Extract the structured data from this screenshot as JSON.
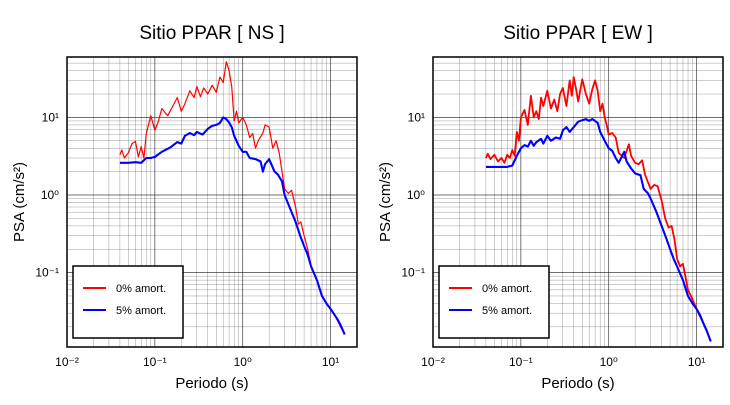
{
  "colors": {
    "undamped": "#ff0000",
    "damped": "#0000ff",
    "grid": "#000000",
    "background": "#ffffff"
  },
  "chart_data": [
    {
      "type": "line",
      "title": "Sitio PPAR [ NS ]",
      "xlabel": "Periodo (s)",
      "ylabel": "PSA (cm/s²)",
      "xscale": "log",
      "yscale": "log",
      "xlim": [
        0.01,
        20
      ],
      "ylim": [
        0.011,
        60
      ],
      "x_ticks": [
        "10⁻²",
        "10⁻¹",
        "10⁰",
        "10¹"
      ],
      "y_ticks": [
        "10⁻¹",
        "10⁰",
        "10¹"
      ],
      "grid": true,
      "legend_position": "bottom-left",
      "series": [
        {
          "name": "0% amort.",
          "color": "#ff0000",
          "points": [
            [
              0.04,
              3.3
            ],
            [
              0.042,
              3.8
            ],
            [
              0.045,
              3.0
            ],
            [
              0.05,
              3.5
            ],
            [
              0.055,
              4.6
            ],
            [
              0.06,
              4.9
            ],
            [
              0.065,
              3.1
            ],
            [
              0.07,
              4.2
            ],
            [
              0.075,
              3.0
            ],
            [
              0.08,
              6.2
            ],
            [
              0.09,
              10.5
            ],
            [
              0.1,
              6.8
            ],
            [
              0.11,
              9.0
            ],
            [
              0.12,
              13.0
            ],
            [
              0.14,
              10.5
            ],
            [
              0.16,
              14.0
            ],
            [
              0.18,
              18.0
            ],
            [
              0.2,
              12.0
            ],
            [
              0.22,
              15.0
            ],
            [
              0.25,
              22.0
            ],
            [
              0.28,
              18.0
            ],
            [
              0.3,
              25.0
            ],
            [
              0.33,
              18.5
            ],
            [
              0.36,
              24.0
            ],
            [
              0.4,
              20.0
            ],
            [
              0.45,
              26.0
            ],
            [
              0.5,
              21.0
            ],
            [
              0.55,
              33.0
            ],
            [
              0.6,
              28.0
            ],
            [
              0.65,
              52.0
            ],
            [
              0.7,
              40.0
            ],
            [
              0.75,
              25.0
            ],
            [
              0.8,
              9.0
            ],
            [
              0.85,
              12.0
            ],
            [
              0.9,
              8.5
            ],
            [
              1.0,
              10.0
            ],
            [
              1.1,
              8.0
            ],
            [
              1.2,
              5.5
            ],
            [
              1.3,
              6.2
            ],
            [
              1.4,
              4.0
            ],
            [
              1.5,
              5.0
            ],
            [
              1.7,
              6.3
            ],
            [
              1.8,
              8.0
            ],
            [
              2.0,
              7.5
            ],
            [
              2.2,
              4.0
            ],
            [
              2.4,
              5.0
            ],
            [
              2.6,
              3.5
            ],
            [
              2.8,
              2.0
            ],
            [
              3.0,
              1.2
            ],
            [
              3.3,
              1.05
            ],
            [
              3.6,
              1.15
            ],
            [
              4.0,
              0.7
            ],
            [
              4.3,
              0.42
            ],
            [
              4.6,
              0.45
            ],
            [
              5.0,
              0.3
            ],
            [
              5.5,
              0.2
            ],
            [
              6.0,
              0.12
            ],
            [
              7.0,
              0.08
            ],
            [
              8.0,
              0.05
            ],
            [
              9.0,
              0.04
            ],
            [
              10.0,
              0.034
            ],
            [
              11.0,
              0.029
            ],
            [
              12.0,
              0.024
            ],
            [
              13.0,
              0.02
            ],
            [
              14.5,
              0.016
            ]
          ]
        },
        {
          "name": "5% amort.",
          "color": "#0000ff",
          "points": [
            [
              0.04,
              2.6
            ],
            [
              0.05,
              2.6
            ],
            [
              0.06,
              2.65
            ],
            [
              0.07,
              2.6
            ],
            [
              0.08,
              3.0
            ],
            [
              0.09,
              3.0
            ],
            [
              0.1,
              3.1
            ],
            [
              0.12,
              3.6
            ],
            [
              0.15,
              4.1
            ],
            [
              0.18,
              4.8
            ],
            [
              0.2,
              4.6
            ],
            [
              0.22,
              5.8
            ],
            [
              0.25,
              6.3
            ],
            [
              0.28,
              5.9
            ],
            [
              0.3,
              6.5
            ],
            [
              0.35,
              6.0
            ],
            [
              0.4,
              7.1
            ],
            [
              0.45,
              7.8
            ],
            [
              0.5,
              8.0
            ],
            [
              0.55,
              8.5
            ],
            [
              0.6,
              10.0
            ],
            [
              0.65,
              9.5
            ],
            [
              0.7,
              8.6
            ],
            [
              0.75,
              7.5
            ],
            [
              0.8,
              5.8
            ],
            [
              0.9,
              4.3
            ],
            [
              1.0,
              3.6
            ],
            [
              1.1,
              3.6
            ],
            [
              1.2,
              3.0
            ],
            [
              1.4,
              2.9
            ],
            [
              1.6,
              2.7
            ],
            [
              1.7,
              2.0
            ],
            [
              1.8,
              2.5
            ],
            [
              2.0,
              2.9
            ],
            [
              2.3,
              2.0
            ],
            [
              2.5,
              1.85
            ],
            [
              2.8,
              1.5
            ],
            [
              3.0,
              1.0
            ],
            [
              3.5,
              0.65
            ],
            [
              4.0,
              0.45
            ],
            [
              4.5,
              0.3
            ],
            [
              5.0,
              0.22
            ],
            [
              5.5,
              0.17
            ],
            [
              6.0,
              0.12
            ],
            [
              7.0,
              0.08
            ],
            [
              8.0,
              0.05
            ],
            [
              9.0,
              0.04
            ],
            [
              10.0,
              0.034
            ],
            [
              11.0,
              0.029
            ],
            [
              12.0,
              0.025
            ],
            [
              13.0,
              0.021
            ],
            [
              14.5,
              0.016
            ]
          ]
        }
      ]
    },
    {
      "type": "line",
      "title": "Sitio PPAR [ EW ]",
      "xlabel": "Periodo (s)",
      "ylabel": "PSA (cm/s²)",
      "xscale": "log",
      "yscale": "log",
      "xlim": [
        0.01,
        20
      ],
      "ylim": [
        0.011,
        60
      ],
      "x_ticks": [
        "10⁻²",
        "10⁻¹",
        "10⁰",
        "10¹"
      ],
      "y_ticks": [
        "10⁻¹",
        "10⁰",
        "10¹"
      ],
      "grid": true,
      "legend_position": "bottom-left",
      "series": [
        {
          "name": "0% amort.",
          "color": "#ff0000",
          "points": [
            [
              0.04,
              3.0
            ],
            [
              0.042,
              3.4
            ],
            [
              0.045,
              2.9
            ],
            [
              0.05,
              3.3
            ],
            [
              0.055,
              2.7
            ],
            [
              0.06,
              3.0
            ],
            [
              0.065,
              2.6
            ],
            [
              0.07,
              3.3
            ],
            [
              0.075,
              3.0
            ],
            [
              0.08,
              3.8
            ],
            [
              0.085,
              3.2
            ],
            [
              0.09,
              6.5
            ],
            [
              0.095,
              5.0
            ],
            [
              0.1,
              10.0
            ],
            [
              0.11,
              12.5
            ],
            [
              0.12,
              8.0
            ],
            [
              0.13,
              19.0
            ],
            [
              0.14,
              10.0
            ],
            [
              0.15,
              12.0
            ],
            [
              0.16,
              9.5
            ],
            [
              0.17,
              18.0
            ],
            [
              0.18,
              14.0
            ],
            [
              0.2,
              22.0
            ],
            [
              0.22,
              13.0
            ],
            [
              0.24,
              17.0
            ],
            [
              0.26,
              12.0
            ],
            [
              0.28,
              20.0
            ],
            [
              0.3,
              24.0
            ],
            [
              0.33,
              14.0
            ],
            [
              0.36,
              30.0
            ],
            [
              0.38,
              19.0
            ],
            [
              0.4,
              33.0
            ],
            [
              0.42,
              25.0
            ],
            [
              0.45,
              16.0
            ],
            [
              0.5,
              31.0
            ],
            [
              0.55,
              20.0
            ],
            [
              0.6,
              15.0
            ],
            [
              0.65,
              23.0
            ],
            [
              0.7,
              30.0
            ],
            [
              0.75,
              22.0
            ],
            [
              0.8,
              12.0
            ],
            [
              0.85,
              15.0
            ],
            [
              0.9,
              10.0
            ],
            [
              0.95,
              8.0
            ],
            [
              1.0,
              6.0
            ],
            [
              1.1,
              6.3
            ],
            [
              1.2,
              5.5
            ],
            [
              1.3,
              3.5
            ],
            [
              1.5,
              3.0
            ],
            [
              1.7,
              4.5
            ],
            [
              1.8,
              3.2
            ],
            [
              2.0,
              2.6
            ],
            [
              2.2,
              2.5
            ],
            [
              2.4,
              2.8
            ],
            [
              2.6,
              1.8
            ],
            [
              3.0,
              1.2
            ],
            [
              3.3,
              1.35
            ],
            [
              3.6,
              1.3
            ],
            [
              4.0,
              0.85
            ],
            [
              4.4,
              0.5
            ],
            [
              4.8,
              0.38
            ],
            [
              5.2,
              0.4
            ],
            [
              5.6,
              0.27
            ],
            [
              6.0,
              0.15
            ],
            [
              6.5,
              0.12
            ],
            [
              7.0,
              0.13
            ],
            [
              8.0,
              0.06
            ],
            [
              9.0,
              0.045
            ],
            [
              10.0,
              0.034
            ],
            [
              11.0,
              0.027
            ],
            [
              12.0,
              0.022
            ],
            [
              13.0,
              0.018
            ],
            [
              14.5,
              0.013
            ]
          ]
        },
        {
          "name": "5% amort.",
          "color": "#0000ff",
          "points": [
            [
              0.04,
              2.3
            ],
            [
              0.05,
              2.3
            ],
            [
              0.06,
              2.3
            ],
            [
              0.07,
              2.3
            ],
            [
              0.08,
              2.4
            ],
            [
              0.09,
              3.2
            ],
            [
              0.1,
              4.0
            ],
            [
              0.11,
              4.4
            ],
            [
              0.12,
              4.2
            ],
            [
              0.13,
              5.0
            ],
            [
              0.14,
              4.3
            ],
            [
              0.15,
              4.8
            ],
            [
              0.17,
              5.3
            ],
            [
              0.18,
              4.6
            ],
            [
              0.2,
              5.8
            ],
            [
              0.22,
              5.0
            ],
            [
              0.25,
              5.5
            ],
            [
              0.28,
              5.3
            ],
            [
              0.3,
              6.8
            ],
            [
              0.33,
              7.5
            ],
            [
              0.36,
              6.5
            ],
            [
              0.4,
              7.5
            ],
            [
              0.45,
              8.8
            ],
            [
              0.5,
              9.2
            ],
            [
              0.55,
              9.5
            ],
            [
              0.6,
              9.0
            ],
            [
              0.65,
              9.5
            ],
            [
              0.7,
              9.0
            ],
            [
              0.75,
              8.5
            ],
            [
              0.8,
              6.5
            ],
            [
              0.9,
              5.0
            ],
            [
              1.0,
              4.0
            ],
            [
              1.1,
              3.7
            ],
            [
              1.2,
              3.0
            ],
            [
              1.3,
              2.6
            ],
            [
              1.5,
              3.6
            ],
            [
              1.6,
              2.7
            ],
            [
              1.8,
              2.2
            ],
            [
              2.0,
              1.9
            ],
            [
              2.3,
              1.8
            ],
            [
              2.5,
              1.2
            ],
            [
              2.8,
              1.05
            ],
            [
              3.0,
              0.9
            ],
            [
              3.5,
              0.6
            ],
            [
              4.0,
              0.4
            ],
            [
              4.5,
              0.28
            ],
            [
              5.0,
              0.2
            ],
            [
              5.5,
              0.15
            ],
            [
              6.0,
              0.12
            ],
            [
              7.0,
              0.08
            ],
            [
              8.0,
              0.05
            ],
            [
              9.0,
              0.04
            ],
            [
              10.0,
              0.034
            ],
            [
              11.0,
              0.028
            ],
            [
              12.0,
              0.022
            ],
            [
              13.0,
              0.018
            ],
            [
              14.5,
              0.013
            ]
          ]
        }
      ]
    }
  ]
}
